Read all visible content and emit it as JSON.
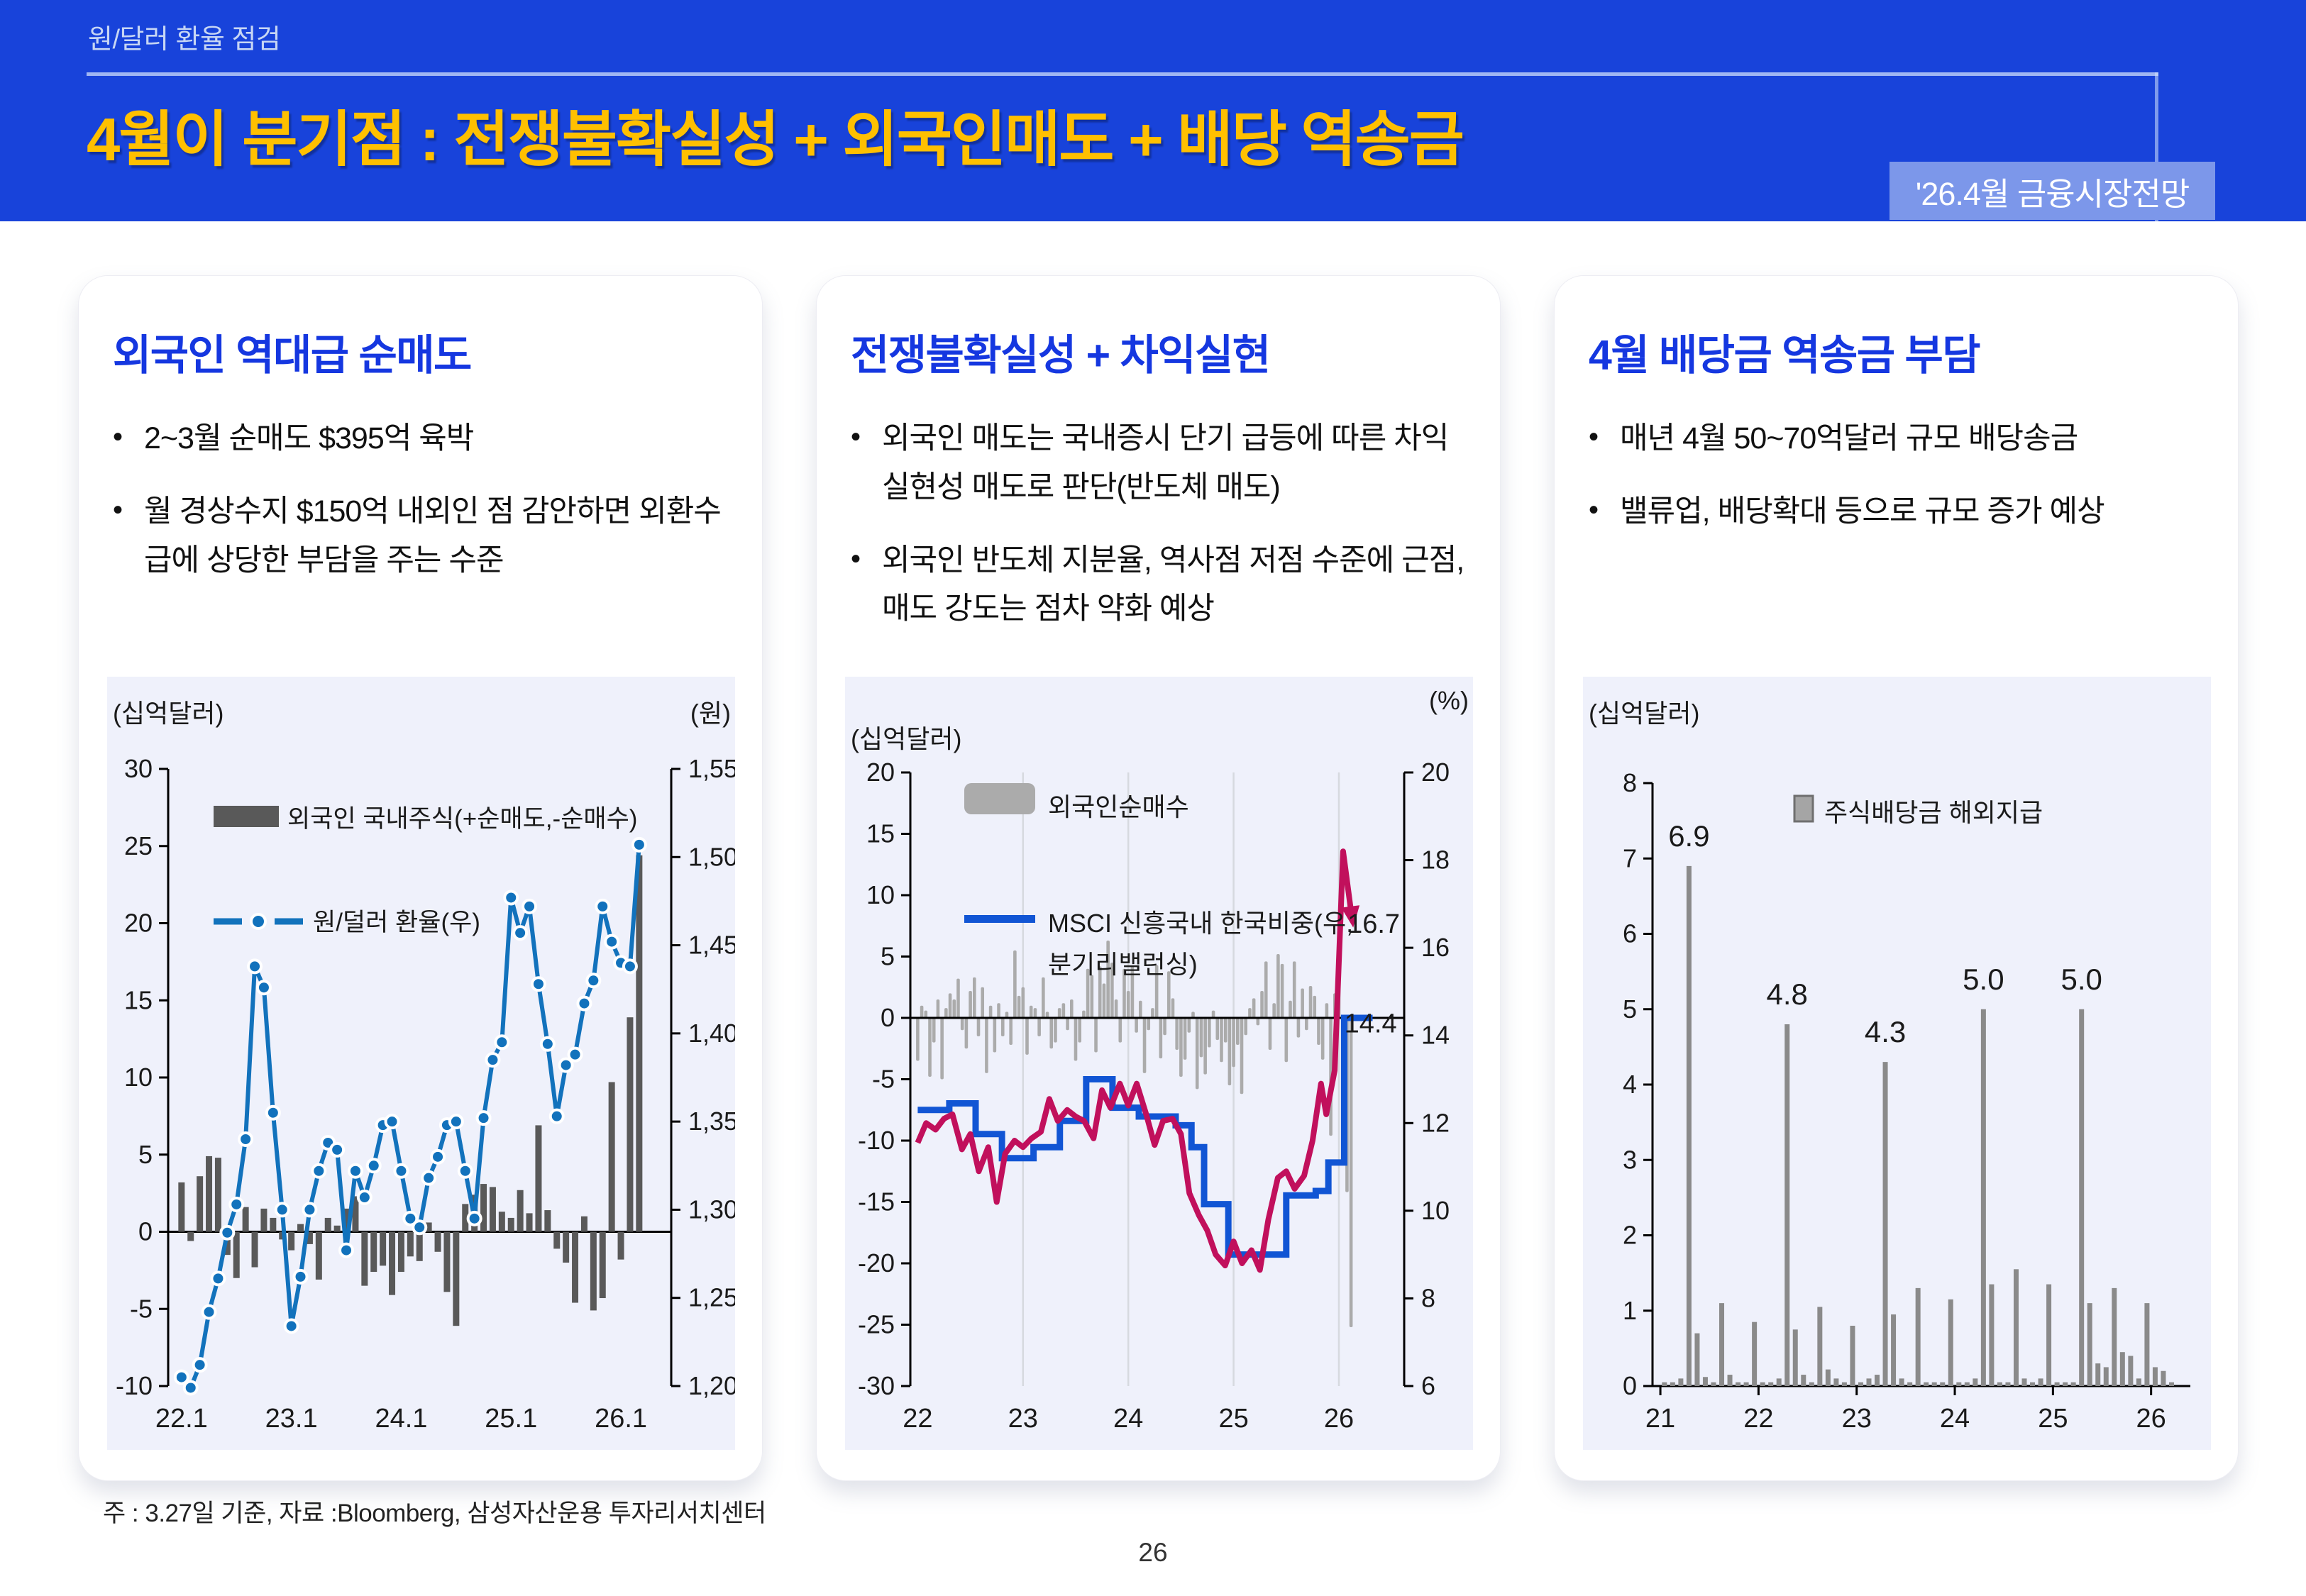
{
  "header": {
    "eyebrow": "원/달러 환율 점검",
    "title": "4월이 분기점 : 전쟁불확실성 + 외국인매도 + 배당 역송금",
    "badge": "'26.4월 금융시장전망"
  },
  "footer": {
    "note": "주 : 3.27일 기준, 자료 :Bloomberg, 삼성자산운용 투자리서치센터",
    "page": "26"
  },
  "panels": [
    {
      "title": "외국인 역대급 순매도",
      "bullets": [
        "2~3월 순매도 $395억 육박",
        "월 경상수지 $150억 내외인 점 감안하면 외환수급에 상당한 부담을 주는 수준"
      ]
    },
    {
      "title": "전쟁불확실성 + 차익실현",
      "bullets": [
        "외국인 매도는 국내증시 단기 급등에 따른 차익실현성 매도로 판단(반도체 매도)",
        "외국인 반도체 지분율, 역사점 저점 수준에 근점, 매도 강도는 점차 약화 예상"
      ]
    },
    {
      "title": "4월 배당금 역송금 부담",
      "bullets": [
        "매년 4월 50~70억달러 규모 배당송금",
        "밸류업, 배당확대 등으로 규모 증가 예상"
      ]
    }
  ],
  "chart_data": [
    {
      "type": "bar",
      "subtype": "bar+line-dual-axis",
      "unit_left": "(십억달러)",
      "unit_right": "(원)",
      "legend": [
        {
          "label": "외국인 국내주식(+순매도,-순매수)",
          "kind": "bar",
          "color": "#595959"
        },
        {
          "label": "원/덜러 환율(우)",
          "kind": "dashdot-line",
          "color": "#1272BC"
        }
      ],
      "x_start": 2022.0,
      "x_step": 0.083333,
      "x_ticks": [
        {
          "x": 2022,
          "label": "22.1"
        },
        {
          "x": 2023,
          "label": "23.1"
        },
        {
          "x": 2024,
          "label": "24.1"
        },
        {
          "x": 2025,
          "label": "25.1"
        },
        {
          "x": 2026,
          "label": "26.1"
        }
      ],
      "xlim": [
        2021.92,
        2026.5
      ],
      "ylim_left": [
        -10,
        30
      ],
      "yticks_left": [
        30,
        25,
        20,
        15,
        10,
        5,
        0,
        -5,
        -10
      ],
      "ylim_right": [
        1200,
        1550
      ],
      "yticks_right": [
        1550,
        1500,
        1450,
        1400,
        1350,
        1300,
        1250,
        1200
      ],
      "bars": [
        3.2,
        -0.6,
        3.6,
        4.9,
        4.8,
        -1.5,
        -3.0,
        1.6,
        -2.3,
        1.5,
        0.9,
        -0.5,
        -1.2,
        0.5,
        -0.8,
        -3.1,
        0.9,
        0.4,
        1.5,
        2.3,
        -3.5,
        -2.6,
        -2.2,
        -4.1,
        -2.6,
        -1.6,
        -1.9,
        0.6,
        -1.3,
        -3.9,
        -6.1,
        1.8,
        2.4,
        3.1,
        2.9,
        1.3,
        0.9,
        2.7,
        1.2,
        6.9,
        1.4,
        -1.1,
        -2.0,
        -4.6,
        1.0,
        -5.1,
        -4.3,
        9.7,
        -1.8,
        13.9,
        24.4
      ],
      "line": [
        1205,
        1199,
        1212,
        1242,
        1261,
        1287,
        1303,
        1340,
        1438,
        1426,
        1355,
        1300,
        1234,
        1262,
        1300,
        1322,
        1338,
        1334,
        1277,
        1322,
        1307,
        1325,
        1348,
        1350,
        1322,
        1295,
        1290,
        1318,
        1330,
        1348,
        1350,
        1322,
        1295,
        1352,
        1385,
        1395,
        1477,
        1457,
        1472,
        1428,
        1394,
        1353,
        1382,
        1388,
        1417,
        1430,
        1472,
        1452,
        1440,
        1438,
        1507
      ]
    },
    {
      "type": "bar",
      "subtype": "bar+2lines-dual-axis",
      "unit_left": "(십억달러)",
      "unit_right": "(%)",
      "legend": [
        {
          "label": "외국인순매수",
          "kind": "bar",
          "color": "#ABABAB"
        },
        {
          "label_line1": "MSCI 신흥국내 한국비중(우,",
          "label_line2": "분기리밸런싱)",
          "kind": "line",
          "color": "#1155D4"
        }
      ],
      "xlim": [
        21.93,
        26.62
      ],
      "grid_x": [
        23,
        24,
        25,
        26
      ],
      "x_ticks": [
        {
          "x": 22,
          "label": "22"
        },
        {
          "x": 23,
          "label": "23"
        },
        {
          "x": 24,
          "label": "24"
        },
        {
          "x": 25,
          "label": "25"
        },
        {
          "x": 26,
          "label": "26"
        }
      ],
      "ylim_left": [
        -30,
        20
      ],
      "yticks_left": [
        20,
        15,
        10,
        5,
        0,
        -5,
        -10,
        -15,
        -20,
        -25,
        -30
      ],
      "ylim_right": [
        6,
        20
      ],
      "yticks_right": [
        20,
        18,
        16,
        14,
        12,
        10,
        8,
        6
      ],
      "bars_x_start": 22.0,
      "bars_x_step": 0.038462,
      "bars": [
        -3.5,
        1.0,
        0.6,
        -4.8,
        -2.0,
        1.5,
        -5.0,
        0.8,
        2.0,
        1.5,
        3.2,
        -1.0,
        -2.5,
        2.2,
        3.3,
        -1.5,
        2.5,
        -4.5,
        1.0,
        -2.8,
        1.2,
        -1.5,
        0.5,
        -2.2,
        5.5,
        1.8,
        2.5,
        -3.0,
        1.0,
        0.8,
        -1.5,
        3.3,
        0.5,
        -2.5,
        -2.0,
        0.8,
        1.2,
        -1.0,
        1.5,
        -3.5,
        -2.0,
        0.6,
        4.0,
        3.5,
        -2.8,
        4.2,
        2.8,
        6.3,
        4.5,
        1.5,
        -2.0,
        4.0,
        2.2,
        4.2,
        -1.2,
        1.4,
        -4.5,
        -1.0,
        0.8,
        4.3,
        -3.3,
        -1.4,
        3.8,
        1.6,
        -2.6,
        -4.8,
        -3.4,
        -1.2,
        0.5,
        -5.8,
        -3.2,
        -4.6,
        -2.4,
        0.6,
        -1.8,
        -3.6,
        -2.0,
        -5.5,
        -4.0,
        -2.2,
        -6.2,
        -1.4,
        0.8,
        1.6,
        -0.6,
        2.2,
        4.6,
        -2.6,
        1.2,
        5.2,
        4.4,
        -3.6,
        1.4,
        4.6,
        -1.6,
        2.4,
        -1.0,
        2.6,
        1.8,
        -2.2,
        -3.4,
        1.2,
        -9.6,
        2.0,
        3.0,
        -8.6,
        -14.2,
        -25.2
      ],
      "line_step": [
        [
          22.0,
          12.3
        ],
        [
          22.3,
          12.45
        ],
        [
          22.55,
          11.75
        ],
        [
          22.8,
          11.2
        ],
        [
          23.1,
          11.45
        ],
        [
          23.35,
          12.05
        ],
        [
          23.6,
          13.0
        ],
        [
          23.85,
          12.35
        ],
        [
          24.1,
          12.15
        ],
        [
          24.45,
          11.95
        ],
        [
          24.6,
          11.45
        ],
        [
          24.72,
          10.15
        ],
        [
          24.95,
          9.0
        ],
        [
          25.5,
          10.35
        ],
        [
          25.78,
          10.45
        ],
        [
          25.9,
          11.1
        ],
        [
          26.05,
          14.4
        ],
        [
          26.32,
          14.4
        ]
      ],
      "line_free": [
        [
          22.0,
          11.55
        ],
        [
          22.08,
          12.0
        ],
        [
          22.17,
          11.85
        ],
        [
          22.25,
          12.1
        ],
        [
          22.33,
          12.2
        ],
        [
          22.42,
          11.4
        ],
        [
          22.5,
          11.75
        ],
        [
          22.58,
          10.9
        ],
        [
          22.67,
          11.45
        ],
        [
          22.75,
          10.2
        ],
        [
          22.83,
          11.3
        ],
        [
          22.92,
          11.6
        ],
        [
          23.0,
          11.45
        ],
        [
          23.08,
          11.65
        ],
        [
          23.17,
          11.8
        ],
        [
          23.25,
          12.55
        ],
        [
          23.33,
          12.05
        ],
        [
          23.42,
          12.3
        ],
        [
          23.5,
          12.15
        ],
        [
          23.58,
          12.05
        ],
        [
          23.67,
          11.65
        ],
        [
          23.75,
          12.75
        ],
        [
          23.83,
          12.35
        ],
        [
          23.92,
          12.9
        ],
        [
          24.0,
          12.4
        ],
        [
          24.08,
          12.9
        ],
        [
          24.17,
          12.2
        ],
        [
          24.25,
          11.5
        ],
        [
          24.33,
          12.05
        ],
        [
          24.42,
          12.1
        ],
        [
          24.5,
          11.75
        ],
        [
          24.58,
          10.4
        ],
        [
          24.67,
          9.9
        ],
        [
          24.75,
          9.55
        ],
        [
          24.83,
          9.0
        ],
        [
          24.92,
          8.75
        ],
        [
          25.0,
          9.3
        ],
        [
          25.08,
          8.8
        ],
        [
          25.17,
          9.1
        ],
        [
          25.25,
          8.65
        ],
        [
          25.33,
          9.8
        ],
        [
          25.42,
          10.75
        ],
        [
          25.5,
          10.9
        ],
        [
          25.58,
          10.5
        ],
        [
          25.67,
          10.8
        ],
        [
          25.75,
          11.6
        ],
        [
          25.83,
          12.9
        ],
        [
          25.88,
          12.2
        ],
        [
          25.96,
          13.2
        ],
        [
          26.04,
          18.2
        ],
        [
          26.12,
          16.75
        ]
      ],
      "line_free_color": "#C1105C",
      "annotations": [
        {
          "text": "16.7",
          "x": 26.58,
          "y": 16.55
        },
        {
          "text": "14.4",
          "x": 26.55,
          "y": 14.28
        }
      ]
    },
    {
      "type": "bar",
      "subtype": "monthly-bars",
      "unit_left": "(십억달러)",
      "legend": [
        {
          "label": "주식배당금 해외지급",
          "kind": "square",
          "color": "#A5A5A5"
        }
      ],
      "xlim": [
        2020.92,
        2026.4
      ],
      "x_ticks": [
        {
          "x": 2021,
          "label": "21"
        },
        {
          "x": 2022,
          "label": "22"
        },
        {
          "x": 2023,
          "label": "23"
        },
        {
          "x": 2024,
          "label": "24"
        },
        {
          "x": 2025,
          "label": "25"
        },
        {
          "x": 2026,
          "label": "26"
        }
      ],
      "ylim": [
        0,
        8
      ],
      "yticks": [
        8,
        7,
        6,
        5,
        4,
        3,
        2,
        1,
        0
      ],
      "x_start": 2021.0,
      "x_step": 0.083333,
      "values": [
        0.05,
        0.05,
        0.1,
        6.9,
        0.7,
        0.12,
        0.05,
        1.1,
        0.15,
        0.05,
        0.05,
        0.85,
        0.05,
        0.05,
        0.1,
        4.8,
        0.75,
        0.15,
        0.05,
        1.05,
        0.22,
        0.1,
        0.05,
        0.8,
        0.05,
        0.1,
        0.15,
        4.3,
        0.95,
        0.1,
        0.05,
        1.3,
        0.05,
        0.05,
        0.05,
        1.15,
        0.05,
        0.05,
        0.1,
        5.0,
        1.35,
        0.05,
        0.05,
        1.55,
        0.1,
        0.05,
        0.1,
        1.35,
        0.05,
        0.05,
        0.05,
        5.0,
        1.1,
        0.3,
        0.25,
        1.3,
        0.45,
        0.4,
        0.1,
        1.1,
        0.25,
        0.2,
        0.05
      ],
      "bar_labels": [
        {
          "x": 2021.2917,
          "value": 6.9,
          "text": "6.9"
        },
        {
          "x": 2022.2917,
          "value": 4.8,
          "text": "4.8"
        },
        {
          "x": 2023.2917,
          "value": 4.3,
          "text": "4.3"
        },
        {
          "x": 2024.2917,
          "value": 5.0,
          "text": "5.0"
        },
        {
          "x": 2025.2917,
          "value": 5.0,
          "text": "5.0"
        }
      ]
    }
  ],
  "colors": {
    "header_bg": "#1843DA",
    "badge_bg": "#7C97EA",
    "title_yellow": "#FFC000",
    "panel_title_blue": "#1537E0",
    "chart_bg": "#EFF1FB",
    "bar_dark": "#595959",
    "bar_mid": "#ABABAB",
    "bar_dividend": "#8A8A8A",
    "line_blue": "#1272BC",
    "line_blue2": "#1155D4",
    "line_magenta": "#C1105C"
  }
}
